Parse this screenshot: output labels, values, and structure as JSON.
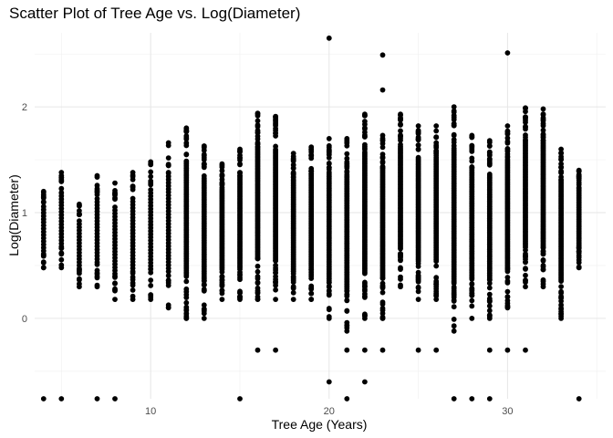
{
  "chart_data": {
    "type": "scatter",
    "title": "Scatter Plot of Tree Age vs. Log(Diameter)",
    "xlabel": "Tree Age (Years)",
    "ylabel": "Log(Diameter)",
    "xlim": [
      3.5,
      35.5
    ],
    "ylim": [
      -0.76,
      2.7
    ],
    "x_ticks": [
      10,
      20,
      30
    ],
    "y_ticks": [
      0,
      1,
      2
    ],
    "grid": true,
    "point_color": "#000000",
    "columns": [
      {
        "x": 4,
        "min": 0.48,
        "max": 1.2,
        "outliers": [
          -0.76
        ]
      },
      {
        "x": 5,
        "min": 0.48,
        "max": 1.38,
        "outliers": [
          -0.76
        ]
      },
      {
        "x": 6,
        "min": 0.3,
        "max": 1.08,
        "outliers": []
      },
      {
        "x": 7,
        "min": 0.3,
        "max": 1.35,
        "outliers": [
          -0.76
        ]
      },
      {
        "x": 8,
        "min": 0.18,
        "max": 1.28,
        "outliers": [
          -0.76
        ]
      },
      {
        "x": 9,
        "min": 0.18,
        "max": 1.38,
        "outliers": []
      },
      {
        "x": 10,
        "min": 0.18,
        "max": 1.48,
        "outliers": []
      },
      {
        "x": 11,
        "min": 0.1,
        "max": 1.66,
        "outliers": []
      },
      {
        "x": 12,
        "min": 0.0,
        "max": 1.8,
        "outliers": []
      },
      {
        "x": 13,
        "min": 0.0,
        "max": 1.63,
        "outliers": []
      },
      {
        "x": 14,
        "min": 0.18,
        "max": 1.46,
        "outliers": []
      },
      {
        "x": 15,
        "min": 0.18,
        "max": 1.6,
        "outliers": [
          -0.76
        ]
      },
      {
        "x": 16,
        "min": 0.18,
        "max": 1.94,
        "outliers": [
          -0.3
        ]
      },
      {
        "x": 17,
        "min": 0.18,
        "max": 1.91,
        "outliers": [
          -0.3
        ]
      },
      {
        "x": 18,
        "min": 0.18,
        "max": 1.56,
        "outliers": []
      },
      {
        "x": 19,
        "min": 0.18,
        "max": 1.62,
        "outliers": []
      },
      {
        "x": 20,
        "min": 0.0,
        "max": 1.7,
        "outliers": [
          2.65,
          -0.6
        ]
      },
      {
        "x": 21,
        "min": -0.12,
        "max": 1.7,
        "outliers": [
          -0.3,
          -0.76
        ]
      },
      {
        "x": 22,
        "min": 0.0,
        "max": 1.93,
        "outliers": [
          -0.3,
          -0.6
        ]
      },
      {
        "x": 23,
        "min": 0.0,
        "max": 1.73,
        "outliers": [
          2.49,
          2.16,
          -0.3
        ]
      },
      {
        "x": 24,
        "min": 0.3,
        "max": 1.93,
        "outliers": []
      },
      {
        "x": 25,
        "min": 0.18,
        "max": 1.82,
        "outliers": [
          -0.3
        ]
      },
      {
        "x": 26,
        "min": 0.18,
        "max": 1.82,
        "outliers": [
          -0.3
        ]
      },
      {
        "x": 27,
        "min": -0.12,
        "max": 2.0,
        "outliers": [
          -0.76
        ]
      },
      {
        "x": 28,
        "min": 0.0,
        "max": 1.73,
        "outliers": [
          -0.76
        ]
      },
      {
        "x": 29,
        "min": 0.0,
        "max": 1.68,
        "outliers": [
          -0.3,
          -0.76
        ]
      },
      {
        "x": 30,
        "min": 0.1,
        "max": 1.82,
        "outliers": [
          2.51,
          -0.3
        ]
      },
      {
        "x": 31,
        "min": 0.3,
        "max": 1.99,
        "outliers": [
          -0.3
        ]
      },
      {
        "x": 32,
        "min": 0.3,
        "max": 1.98,
        "outliers": []
      },
      {
        "x": 33,
        "min": 0.0,
        "max": 1.6,
        "outliers": []
      },
      {
        "x": 34,
        "min": 0.48,
        "max": 1.4,
        "outliers": [
          -0.76
        ]
      }
    ]
  }
}
